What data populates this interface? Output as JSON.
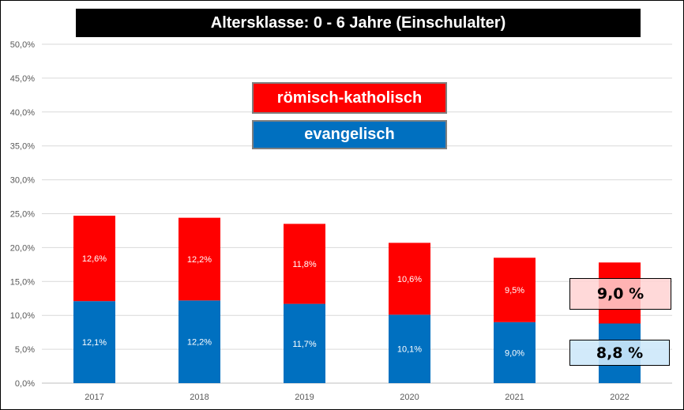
{
  "chart_data": {
    "type": "bar",
    "stacked": true,
    "title": "Altersklasse: 0 - 6 Jahre (Einschulalter)",
    "categories": [
      "2017",
      "2018",
      "2019",
      "2020",
      "2021",
      "2022"
    ],
    "series": [
      {
        "name": "evangelisch",
        "color": "#0070c0",
        "values": [
          12.1,
          12.2,
          11.7,
          10.1,
          9.0,
          8.8
        ],
        "labels": [
          "12,1%",
          "12,2%",
          "11,7%",
          "10,1%",
          "9,0%",
          ""
        ]
      },
      {
        "name": "römisch-katholisch",
        "color": "#ff0000",
        "values": [
          12.6,
          12.2,
          11.8,
          10.6,
          9.5,
          9.0
        ],
        "labels": [
          "12,6%",
          "12,2%",
          "11,8%",
          "10,6%",
          "9,5%",
          ""
        ]
      }
    ],
    "ylim": [
      0,
      50
    ],
    "yticks": [
      "0,0%",
      "5,0%",
      "10,0%",
      "15,0%",
      "20,0%",
      "25,0%",
      "30,0%",
      "35,0%",
      "40,0%",
      "45,0%",
      "50,0%"
    ],
    "grid": true,
    "annotations": {
      "rk_2022": "9,0 %",
      "ev_2022": "8,8 %"
    }
  }
}
